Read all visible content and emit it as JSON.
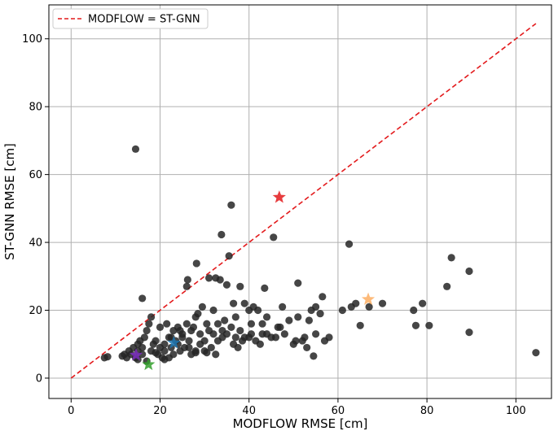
{
  "chart_data": {
    "type": "scatter",
    "xlabel": "MODFLOW RMSE [cm]",
    "ylabel": "ST-GNN RMSE [cm]",
    "xlim": [
      -5,
      108
    ],
    "ylim": [
      -6,
      110
    ],
    "xticks": [
      0,
      20,
      40,
      60,
      80,
      100
    ],
    "yticks": [
      0,
      20,
      40,
      60,
      80,
      100
    ],
    "grid": true,
    "legend": {
      "placement": "top-left",
      "entries": [
        "MODFLOW = ST-GNN"
      ]
    },
    "reference_line": {
      "name": "MODFLOW = ST-GNN",
      "x": [
        0,
        104.5
      ],
      "y": [
        0,
        104.5
      ],
      "color": "#e31a1c"
    },
    "point_color": "#262626",
    "points": [
      [
        7.5,
        6
      ],
      [
        8.2,
        6.3
      ],
      [
        11.5,
        6.5
      ],
      [
        12,
        7
      ],
      [
        12.5,
        6
      ],
      [
        13,
        8
      ],
      [
        13.5,
        7
      ],
      [
        14,
        9
      ],
      [
        14.5,
        6
      ],
      [
        15,
        8
      ],
      [
        15,
        10
      ],
      [
        15.5,
        11
      ],
      [
        16,
        7
      ],
      [
        16,
        9
      ],
      [
        16.5,
        12
      ],
      [
        17,
        5
      ],
      [
        17,
        14
      ],
      [
        17.5,
        16
      ],
      [
        18,
        18
      ],
      [
        18,
        8
      ],
      [
        18.5,
        10
      ],
      [
        19,
        11
      ],
      [
        19.5,
        7
      ],
      [
        20,
        9
      ],
      [
        20,
        15
      ],
      [
        20.5,
        6
      ],
      [
        21,
        8
      ],
      [
        21,
        10
      ],
      [
        21.5,
        16
      ],
      [
        22,
        12
      ],
      [
        22,
        6
      ],
      [
        22.5,
        9
      ],
      [
        23,
        7
      ],
      [
        23,
        14
      ],
      [
        23.5,
        11
      ],
      [
        24,
        10
      ],
      [
        24,
        15
      ],
      [
        24.5,
        8
      ],
      [
        25,
        12
      ],
      [
        25,
        13
      ],
      [
        25.5,
        9
      ],
      [
        26,
        16
      ],
      [
        26,
        27
      ],
      [
        26.2,
        29
      ],
      [
        26.5,
        11
      ],
      [
        27,
        14
      ],
      [
        27,
        7
      ],
      [
        27.5,
        15
      ],
      [
        28,
        8
      ],
      [
        28,
        18
      ],
      [
        28.2,
        33.8
      ],
      [
        28.5,
        19
      ],
      [
        29,
        13
      ],
      [
        29,
        10
      ],
      [
        29.5,
        21
      ],
      [
        30,
        8
      ],
      [
        30,
        11
      ],
      [
        30.5,
        16
      ],
      [
        31,
        29.5
      ],
      [
        31,
        14
      ],
      [
        31.5,
        9
      ],
      [
        32,
        13
      ],
      [
        32,
        20
      ],
      [
        32.5,
        29.5
      ],
      [
        33,
        11
      ],
      [
        33,
        16
      ],
      [
        33.5,
        29
      ],
      [
        33.8,
        42.3
      ],
      [
        34,
        14
      ],
      [
        34,
        12
      ],
      [
        34.5,
        17
      ],
      [
        35,
        13
      ],
      [
        35,
        27.5
      ],
      [
        35.5,
        36
      ],
      [
        36,
        15
      ],
      [
        36,
        51
      ],
      [
        36.5,
        10
      ],
      [
        37,
        12
      ],
      [
        37,
        18
      ],
      [
        37.5,
        9
      ],
      [
        38,
        14
      ],
      [
        38,
        27
      ],
      [
        38.5,
        11
      ],
      [
        39,
        12
      ],
      [
        39,
        22
      ],
      [
        40,
        12
      ],
      [
        40,
        20
      ],
      [
        40.5,
        13
      ],
      [
        41,
        21
      ],
      [
        41.5,
        11
      ],
      [
        42,
        20
      ],
      [
        42.5,
        10
      ],
      [
        43,
        13
      ],
      [
        43.5,
        26.5
      ],
      [
        44,
        13
      ],
      [
        44,
        18
      ],
      [
        45,
        12
      ],
      [
        45.5,
        41.5
      ],
      [
        46,
        12
      ],
      [
        46.5,
        15
      ],
      [
        47,
        15
      ],
      [
        48,
        13
      ],
      [
        49,
        17
      ],
      [
        50,
        10
      ],
      [
        50.5,
        11
      ],
      [
        51,
        18
      ],
      [
        51,
        28
      ],
      [
        52,
        11
      ],
      [
        52.5,
        12
      ],
      [
        53,
        9
      ],
      [
        53.5,
        17
      ],
      [
        54,
        20
      ],
      [
        54.5,
        6.5
      ],
      [
        55,
        21
      ],
      [
        55,
        13
      ],
      [
        56,
        19
      ],
      [
        56.5,
        24
      ],
      [
        57,
        11
      ],
      [
        58,
        12
      ],
      [
        61,
        20
      ],
      [
        62.5,
        39.5
      ],
      [
        63,
        21
      ],
      [
        64,
        22
      ],
      [
        65,
        15.5
      ],
      [
        67,
        21
      ],
      [
        70,
        22
      ],
      [
        77,
        20
      ],
      [
        77.5,
        15.5
      ],
      [
        79,
        22
      ],
      [
        80.5,
        15.5
      ],
      [
        84.5,
        27
      ],
      [
        85.5,
        35.5
      ],
      [
        89.5,
        31.5
      ],
      [
        89.5,
        13.5
      ],
      [
        104.5,
        7.5
      ],
      [
        14.5,
        67.5
      ],
      [
        16,
        23.5
      ],
      [
        15,
        5.5
      ],
      [
        19,
        7.5
      ],
      [
        21,
        5.5
      ],
      [
        28,
        7.5
      ],
      [
        30.5,
        7.5
      ],
      [
        22.5,
        12
      ],
      [
        24.5,
        14
      ],
      [
        26.5,
        9
      ],
      [
        32.5,
        7
      ],
      [
        36.5,
        22
      ],
      [
        40.5,
        16
      ],
      [
        43,
        16
      ],
      [
        47.5,
        21
      ]
    ],
    "highlights": [
      {
        "x": 46.8,
        "y": 53.3,
        "color": "#e31a1c"
      },
      {
        "x": 66.8,
        "y": 23.2,
        "color": "#fdae61"
      },
      {
        "x": 23.1,
        "y": 10.4,
        "color": "#1f78b4"
      },
      {
        "x": 17.4,
        "y": 4.0,
        "color": "#33a02c"
      },
      {
        "x": 14.6,
        "y": 6.8,
        "color": "#7b2cbf"
      }
    ]
  }
}
